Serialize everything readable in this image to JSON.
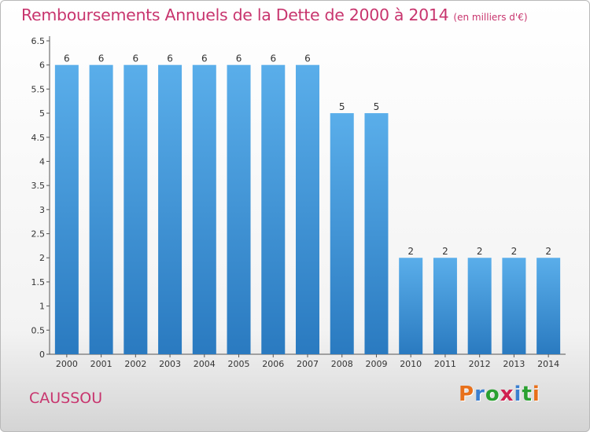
{
  "header": {
    "title": "Remboursements Annuels de la Dette de 2000 à 2014",
    "unit": "(en milliers d'€)"
  },
  "footer": {
    "commune": "CAUSSOU",
    "logo": "Proxiti"
  },
  "colors": {
    "title": "#c8356e",
    "bar_light": "#5aaeea",
    "bar_dark": "#2a7ac0",
    "logo_letters": [
      "#e8701a",
      "#3a7fd0",
      "#2aa030",
      "#d02050",
      "#3a7fd0",
      "#2aa030",
      "#e8701a"
    ]
  },
  "chart_data": {
    "type": "bar",
    "title": "Remboursements Annuels de la Dette de 2000 à 2014",
    "subtitle": "(en milliers d'€)",
    "xlabel": "",
    "ylabel": "",
    "categories": [
      "2000",
      "2001",
      "2002",
      "2003",
      "2004",
      "2005",
      "2006",
      "2007",
      "2008",
      "2009",
      "2010",
      "2011",
      "2012",
      "2013",
      "2014"
    ],
    "values": [
      6,
      6,
      6,
      6,
      6,
      6,
      6,
      6,
      5,
      5,
      2,
      2,
      2,
      2,
      2
    ],
    "data_labels": [
      "6",
      "6",
      "6",
      "6",
      "6",
      "6",
      "6",
      "6",
      "5",
      "5",
      "2",
      "2",
      "2",
      "2",
      "2"
    ],
    "yticks": [
      "0",
      "0.5",
      "1",
      "1.5",
      "2",
      "2.5",
      "3",
      "3.5",
      "4",
      "4.5",
      "5",
      "5.5",
      "6",
      "6.5"
    ],
    "ylim": [
      0,
      6.5
    ],
    "grid": false,
    "legend": "none"
  }
}
